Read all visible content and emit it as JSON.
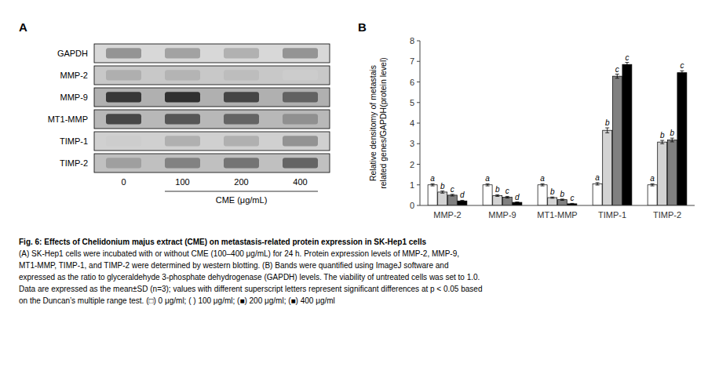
{
  "chart_data": [
    {
      "type": "blot",
      "title": "A",
      "row_labels": [
        "GAPDH",
        "MMP-2",
        "MMP-9",
        "MT1-MMP",
        "TIMP-1",
        "TIMP-2"
      ],
      "categories": [
        "0",
        "100",
        "200",
        "400"
      ],
      "xlabel": "CME (μg/mL)"
    },
    {
      "type": "bar",
      "title": "B",
      "categories": [
        "MMP-2",
        "MMP-9",
        "MT1-MMP",
        "TIMP-1",
        "TIMP-2"
      ],
      "ylabel": "Relative densitomy of metastais\nrelated genes/GAPDH(protein level)",
      "ylim": [
        0,
        8
      ],
      "yticks": [
        0,
        1,
        2,
        3,
        4,
        5,
        6,
        7,
        8
      ],
      "grid": false,
      "series": [
        {
          "color": "#ffffff",
          "values": [
            1.0,
            1.0,
            1.0,
            1.05,
            1.0
          ],
          "errors": [
            0.05,
            0.05,
            0.05,
            0.06,
            0.05
          ],
          "letters": [
            "a",
            "a",
            "a",
            "a",
            "a"
          ]
        },
        {
          "color": "#d3d3d3",
          "values": [
            0.65,
            0.48,
            0.38,
            3.65,
            3.08
          ],
          "errors": [
            0.05,
            0.04,
            0.03,
            0.12,
            0.08
          ],
          "letters": [
            "b",
            "b",
            "b",
            "b",
            "b"
          ]
        },
        {
          "color": "#808080",
          "values": [
            0.5,
            0.4,
            0.28,
            6.28,
            3.18
          ],
          "errors": [
            0.04,
            0.04,
            0.03,
            0.1,
            0.09
          ],
          "letters": [
            "c",
            "c",
            "b",
            "c",
            "b"
          ]
        },
        {
          "color": "#000000",
          "values": [
            0.22,
            0.15,
            0.08,
            6.85,
            6.45
          ],
          "errors": [
            0.03,
            0.02,
            0.02,
            0.1,
            0.09
          ],
          "letters": [
            "d",
            "d",
            "c",
            "c",
            "c"
          ]
        }
      ],
      "annotations": [
        "Fig. 6: Effects of Chelidonium majus extract (CME) on metastasis-related protein expression in SK-Hep1 cells",
        "(A) SK-Hep1 cells were incubated with or without CME (100–400 μg/mL) for 24 h. Protein expression levels of MMP-2, MMP-9,",
        "MT1-MMP, TIMP-1, and TIMP-2 were determined by western blotting. (B) Bands were quantified using ImageJ software and",
        "expressed as the ratio to glyceraldehyde 3-phosphate dehydrogenase (GAPDH) levels. The viability of untreated cells was set to 1.0.",
        "Data are expressed as the mean±SD (n=3); values with different superscript letters represent significant differences at p < 0.05 based",
        "on the Duncan’s multiple range test. (□) 0 μg/ml; ( ) 100 μg/ml; (■) 200 μg/ml; (■) 400 μg/ml"
      ]
    }
  ]
}
